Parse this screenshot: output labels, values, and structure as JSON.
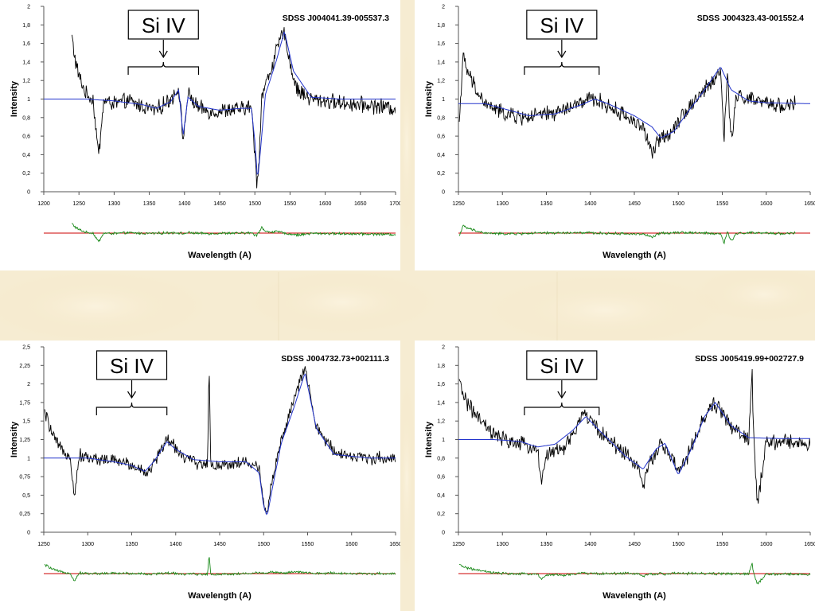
{
  "page": {
    "background_color": "#f6ecd2",
    "panel_color": "#ffffff"
  },
  "chart_data": [
    {
      "type": "line",
      "title": "SDSS J004041.39-005537.3",
      "xlabel": "Wavelength (A)",
      "ylabel": "Intensity",
      "annotation": "Si IV",
      "bracket_x": [
        1320,
        1420
      ],
      "xlim": [
        1200,
        1700
      ],
      "ylim": [
        0,
        2
      ],
      "xticks": [
        "1200",
        "1250",
        "1300",
        "1350",
        "1400",
        "1450",
        "1500",
        "1550",
        "1600",
        "1650",
        "1700"
      ],
      "yticks": [
        "0",
        "0,2",
        "0,4",
        "0,6",
        "0,8",
        "1",
        "1,2",
        "1,4",
        "1,6",
        "1,8",
        "2"
      ],
      "series": [
        {
          "color": "#000000",
          "x": [
            1240,
            1245,
            1250,
            1260,
            1270,
            1278,
            1285,
            1300,
            1320,
            1340,
            1360,
            1380,
            1392,
            1398,
            1405,
            1420,
            1440,
            1460,
            1480,
            1495,
            1500,
            1503,
            1506,
            1510,
            1520,
            1530,
            1540,
            1545,
            1550,
            1560,
            1580,
            1600,
            1620,
            1650,
            1680,
            1700
          ],
          "y": [
            1.68,
            1.4,
            1.25,
            1.05,
            1.0,
            0.38,
            0.98,
            0.95,
            0.98,
            0.92,
            0.88,
            1.0,
            1.12,
            0.55,
            1.05,
            0.9,
            0.86,
            0.88,
            0.89,
            0.92,
            0.4,
            0.1,
            0.35,
            1.05,
            1.25,
            1.5,
            1.72,
            1.62,
            1.38,
            1.1,
            1.0,
            0.98,
            0.96,
            0.94,
            0.92,
            0.9
          ]
        },
        {
          "color": "#2233cc",
          "x": [
            1200,
            1260,
            1300,
            1340,
            1360,
            1380,
            1392,
            1398,
            1405,
            1420,
            1450,
            1480,
            1495,
            1500,
            1504,
            1508,
            1515,
            1530,
            1542,
            1555,
            1580,
            1620,
            1700
          ],
          "y": [
            1.0,
            1.0,
            0.98,
            0.94,
            0.9,
            0.97,
            1.1,
            0.6,
            1.02,
            0.92,
            0.88,
            0.9,
            0.9,
            0.55,
            0.12,
            0.45,
            1.05,
            1.4,
            1.73,
            1.3,
            1.02,
            1.0,
            1.0
          ]
        }
      ]
    },
    {
      "type": "line",
      "title": "SDSS J004323.43-001552.4",
      "xlabel": "Wavelength (A)",
      "ylabel": "Intensity",
      "annotation": "Si IV",
      "bracket_x": [
        1325,
        1410
      ],
      "xlim": [
        1250,
        1650
      ],
      "ylim": [
        0,
        2
      ],
      "xticks": [
        "1250",
        "1300",
        "1350",
        "1400",
        "1450",
        "1500",
        "1550",
        "1600",
        "1650"
      ],
      "yticks": [
        "0",
        "0,2",
        "0,4",
        "0,6",
        "0,8",
        "1",
        "1,2",
        "1,4",
        "1,6",
        "1,8",
        "2"
      ],
      "series": [
        {
          "color": "#000000",
          "x": [
            1251,
            1255,
            1260,
            1265,
            1270,
            1280,
            1300,
            1320,
            1340,
            1360,
            1380,
            1400,
            1410,
            1420,
            1440,
            1460,
            1470,
            1480,
            1490,
            1500,
            1520,
            1540,
            1548,
            1552,
            1556,
            1560,
            1565,
            1570,
            1580,
            1600,
            1620,
            1633
          ],
          "y": [
            0.75,
            1.45,
            1.3,
            1.2,
            1.1,
            0.95,
            0.85,
            0.8,
            0.82,
            0.85,
            0.92,
            1.0,
            0.98,
            0.92,
            0.82,
            0.7,
            0.4,
            0.6,
            0.62,
            0.78,
            1.0,
            1.2,
            1.3,
            0.6,
            1.25,
            0.55,
            0.95,
            1.05,
            1.0,
            0.95,
            0.93,
            0.95
          ]
        },
        {
          "color": "#2233cc",
          "x": [
            1250,
            1280,
            1300,
            1330,
            1360,
            1390,
            1405,
            1420,
            1450,
            1470,
            1480,
            1495,
            1510,
            1530,
            1548,
            1560,
            1580,
            1600,
            1650
          ],
          "y": [
            0.95,
            0.95,
            0.9,
            0.82,
            0.84,
            0.94,
            1.0,
            0.95,
            0.82,
            0.7,
            0.58,
            0.65,
            0.85,
            1.1,
            1.35,
            1.1,
            0.98,
            0.96,
            0.95
          ]
        }
      ]
    },
    {
      "type": "line",
      "title": "SDSS J004732.73+002111.3",
      "xlabel": "Wavelength (A)",
      "ylabel": "Intensity",
      "annotation": "Si IV",
      "bracket_x": [
        1310,
        1390
      ],
      "xlim": [
        1250,
        1650
      ],
      "ylim": [
        0,
        2.5
      ],
      "xticks": [
        "1250",
        "1300",
        "1350",
        "1400",
        "1450",
        "1500",
        "1550",
        "1600",
        "1650"
      ],
      "yticks": [
        "0",
        "0,25",
        "0,5",
        "0,75",
        "1",
        "1,25",
        "1,5",
        "1,75",
        "2",
        "2,25",
        "2,5"
      ],
      "series": [
        {
          "color": "#000000",
          "x": [
            1251,
            1255,
            1260,
            1270,
            1280,
            1285,
            1290,
            1300,
            1320,
            1340,
            1360,
            1370,
            1380,
            1390,
            1400,
            1410,
            1420,
            1430,
            1436,
            1438,
            1440,
            1460,
            1480,
            1495,
            1500,
            1503,
            1508,
            1520,
            1530,
            1540,
            1547,
            1552,
            1560,
            1580,
            1600,
            1620,
            1650
          ],
          "y": [
            1.6,
            1.5,
            1.3,
            1.1,
            1.05,
            0.45,
            1.05,
            1.0,
            0.98,
            0.95,
            0.85,
            0.8,
            1.05,
            1.25,
            1.15,
            1.0,
            0.95,
            0.92,
            0.9,
            2.2,
            0.9,
            0.92,
            0.95,
            0.85,
            0.45,
            0.2,
            0.6,
            1.25,
            1.6,
            2.0,
            2.2,
            1.9,
            1.4,
            1.1,
            1.02,
            1.0,
            1.0
          ]
        },
        {
          "color": "#2233cc",
          "x": [
            1250,
            1280,
            1300,
            1330,
            1350,
            1365,
            1375,
            1390,
            1400,
            1420,
            1450,
            1480,
            1495,
            1500,
            1504,
            1510,
            1520,
            1535,
            1547,
            1560,
            1580,
            1620,
            1650
          ],
          "y": [
            1.0,
            1.0,
            1.0,
            0.95,
            0.9,
            0.82,
            0.95,
            1.22,
            1.12,
            0.98,
            0.95,
            0.95,
            0.8,
            0.35,
            0.22,
            0.6,
            1.2,
            1.7,
            2.15,
            1.4,
            1.05,
            1.0,
            1.0
          ]
        }
      ]
    },
    {
      "type": "line",
      "title": "SDSS J005419.99+002727.9",
      "xlabel": "Wavelength (A)",
      "ylabel": "Intensity",
      "annotation": "Si IV",
      "bracket_x": [
        1325,
        1410
      ],
      "xlim": [
        1250,
        1650
      ],
      "ylim": [
        0,
        2
      ],
      "xticks": [
        "1250",
        "1300",
        "1350",
        "1400",
        "1450",
        "1500",
        "1550",
        "1600",
        "1650"
      ],
      "yticks": [
        "0",
        "0,2",
        "0,4",
        "0,6",
        "0,8",
        "1",
        "1,2",
        "1,4",
        "1,6",
        "1,8",
        "2"
      ],
      "series": [
        {
          "color": "#000000",
          "x": [
            1251,
            1260,
            1270,
            1280,
            1290,
            1300,
            1320,
            1340,
            1345,
            1350,
            1370,
            1380,
            1393,
            1400,
            1420,
            1440,
            1455,
            1460,
            1470,
            1480,
            1490,
            1500,
            1510,
            1530,
            1540,
            1550,
            1560,
            1570,
            1580,
            1584,
            1586,
            1590,
            1600,
            1620,
            1650
          ],
          "y": [
            1.6,
            1.4,
            1.25,
            1.15,
            1.05,
            1.0,
            0.95,
            0.9,
            0.5,
            0.85,
            0.9,
            1.05,
            1.3,
            1.2,
            1.0,
            0.85,
            0.7,
            0.5,
            0.8,
            0.95,
            0.85,
            0.65,
            0.8,
            1.25,
            1.38,
            1.3,
            1.15,
            1.05,
            1.0,
            1.7,
            0.95,
            0.3,
            0.95,
            0.98,
            0.95
          ]
        },
        {
          "color": "#2233cc",
          "x": [
            1250,
            1290,
            1320,
            1340,
            1360,
            1380,
            1395,
            1410,
            1440,
            1460,
            1475,
            1485,
            1500,
            1515,
            1530,
            1542,
            1560,
            1580,
            1620,
            1650
          ],
          "y": [
            1.0,
            1.0,
            0.98,
            0.92,
            0.95,
            1.1,
            1.25,
            1.1,
            0.82,
            0.68,
            0.9,
            0.96,
            0.62,
            0.9,
            1.25,
            1.4,
            1.15,
            1.02,
            1.01,
            1.01
          ]
        }
      ]
    }
  ]
}
